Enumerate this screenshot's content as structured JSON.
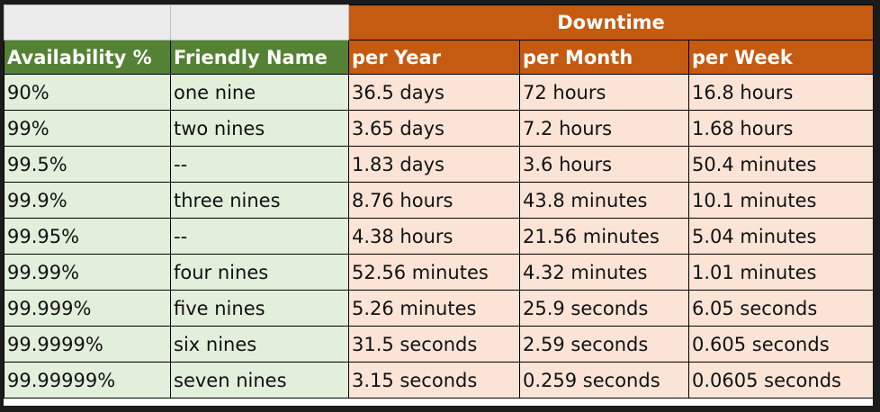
{
  "band": {
    "downtime_label": "Downtime"
  },
  "columns": [
    "Availability %",
    "Friendly Name",
    "per Year",
    "per Month",
    "per Week"
  ],
  "rows": [
    [
      "90%",
      "one nine",
      "36.5 days",
      "72 hours",
      "16.8 hours"
    ],
    [
      "99%",
      "two nines",
      "3.65 days",
      "7.2 hours",
      "1.68 hours"
    ],
    [
      "99.5%",
      "--",
      "1.83 days",
      "3.6 hours",
      "50.4 minutes"
    ],
    [
      "99.9%",
      "three nines",
      "8.76 hours",
      "43.8 minutes",
      "10.1 minutes"
    ],
    [
      "99.95%",
      "--",
      "4.38 hours",
      "21.56 minutes",
      "5.04 minutes"
    ],
    [
      "99.99%",
      "four nines",
      "52.56 minutes",
      "4.32 minutes",
      "1.01 minutes"
    ],
    [
      "99.999%",
      "five nines",
      "5.26 minutes",
      "25.9 seconds",
      "6.05 seconds"
    ],
    [
      "99.9999%",
      "six nines",
      "31.5 seconds",
      "2.59 seconds",
      "0.605 seconds"
    ],
    [
      "99.99999%",
      "seven nines",
      "3.15 seconds",
      "0.259 seconds",
      "0.0605 seconds"
    ]
  ],
  "colors": {
    "header_green": "#548235",
    "header_orange": "#c55a11",
    "body_green": "#e2efda",
    "body_orange": "#fbe4d5"
  }
}
